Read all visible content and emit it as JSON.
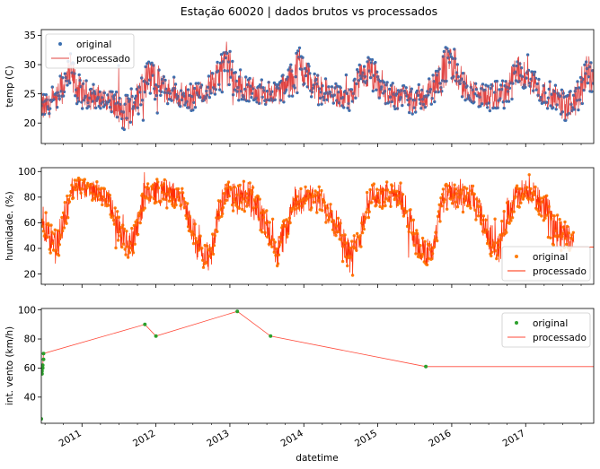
{
  "title": "Estação 60020 | dados brutos vs processados",
  "xlabel": "datetime",
  "colors": {
    "temp_original": "#3a6fb0",
    "temp_processado": "#e0403e",
    "hum_original": "#ff7f0e",
    "hum_processado": "#ff2a00",
    "vento_original": "#2ca02c",
    "vento_processado": "#ff4a3a"
  },
  "chart_data": [
    {
      "type": "line",
      "name": "temp",
      "ylabel": "temp (C)",
      "xlim": [
        2010.45,
        2017.92
      ],
      "ylim": [
        16.5,
        36
      ],
      "yticks": [
        20,
        25,
        30,
        35
      ],
      "xticks": [
        2011,
        2012,
        2013,
        2014,
        2015,
        2016,
        2017
      ],
      "xticklabels": [],
      "legend": [
        "original",
        "processado"
      ],
      "legend_position": "upper left",
      "series": [
        {
          "name": "original",
          "style": "markers"
        },
        {
          "name": "processado",
          "style": "line"
        }
      ],
      "x": [
        2010.45,
        2010.55,
        2010.65,
        2010.75,
        2010.85,
        2010.95,
        2011.05,
        2011.15,
        2011.25,
        2011.35,
        2011.45,
        2011.55,
        2011.65,
        2011.75,
        2011.85,
        2011.95,
        2012.05,
        2012.15,
        2012.25,
        2012.35,
        2012.45,
        2012.55,
        2012.65,
        2012.75,
        2012.85,
        2012.95,
        2013.05,
        2013.15,
        2013.25,
        2013.35,
        2013.45,
        2013.55,
        2013.65,
        2013.75,
        2013.85,
        2013.95,
        2014.05,
        2014.15,
        2014.25,
        2014.35,
        2014.45,
        2014.55,
        2014.65,
        2014.75,
        2014.85,
        2014.95,
        2015.05,
        2015.15,
        2015.25,
        2015.35,
        2015.45,
        2015.55,
        2015.65,
        2015.75,
        2015.85,
        2015.95,
        2016.05,
        2016.15,
        2016.25,
        2016.35,
        2016.45,
        2016.55,
        2016.65,
        2016.75,
        2016.85,
        2016.95,
        2017.05,
        2017.15,
        2017.25,
        2017.35,
        2017.45,
        2017.55,
        2017.65,
        2017.75,
        2017.85,
        2017.92
      ],
      "mean": [
        22.5,
        23.0,
        23.8,
        26.5,
        28.5,
        25.5,
        25.0,
        24.5,
        24.2,
        24.0,
        23.0,
        21.0,
        22.5,
        24.5,
        27.5,
        28.0,
        26.5,
        25.5,
        25.0,
        24.5,
        24.2,
        24.8,
        25.5,
        26.5,
        28.0,
        30.5,
        27.0,
        26.0,
        25.5,
        25.5,
        25.0,
        25.0,
        25.5,
        26.0,
        28.0,
        30.0,
        28.0,
        26.0,
        25.5,
        25.0,
        24.5,
        24.0,
        24.5,
        26.5,
        28.5,
        27.5,
        25.5,
        25.0,
        24.5,
        24.8,
        24.5,
        24.0,
        24.5,
        26.0,
        28.0,
        30.0,
        29.5,
        26.5,
        25.5,
        25.0,
        24.5,
        24.0,
        24.8,
        25.5,
        28.0,
        29.0,
        28.0,
        26.0,
        25.0,
        24.5,
        24.0,
        22.5,
        23.5,
        26.0,
        28.5,
        28.0
      ],
      "amp": [
        2.5,
        2.0,
        2.0,
        3.0,
        3.0,
        2.5,
        2.0,
        2.0,
        2.0,
        2.0,
        2.5,
        3.0,
        3.0,
        2.5,
        3.0,
        3.0,
        2.5,
        2.0,
        2.0,
        2.0,
        2.0,
        2.0,
        2.0,
        2.5,
        3.0,
        3.5,
        3.0,
        2.5,
        2.0,
        2.0,
        2.0,
        2.0,
        2.0,
        2.5,
        3.0,
        3.5,
        3.0,
        2.5,
        2.0,
        2.0,
        2.0,
        2.0,
        2.0,
        3.0,
        3.0,
        3.0,
        2.5,
        2.0,
        2.0,
        2.0,
        2.5,
        2.5,
        2.0,
        2.5,
        3.0,
        3.5,
        3.5,
        2.5,
        2.0,
        2.0,
        2.0,
        2.5,
        2.0,
        2.5,
        3.0,
        3.0,
        3.0,
        2.5,
        2.0,
        2.0,
        2.0,
        2.5,
        2.5,
        3.0,
        3.5,
        3.0
      ],
      "min": 17.8,
      "max": 35.0
    },
    {
      "type": "line",
      "name": "humidade",
      "ylabel": "humidade. (%)",
      "xlim": [
        2010.45,
        2017.92
      ],
      "ylim": [
        12,
        103
      ],
      "yticks": [
        20,
        40,
        60,
        80,
        100
      ],
      "xticks": [
        2011,
        2012,
        2013,
        2014,
        2015,
        2016,
        2017
      ],
      "xticklabels": [],
      "legend": [
        "original",
        "processado"
      ],
      "legend_position": "lower right",
      "series": [
        {
          "name": "original",
          "style": "markers"
        },
        {
          "name": "processado",
          "style": "line"
        }
      ],
      "x": [
        2010.45,
        2010.55,
        2010.65,
        2010.75,
        2010.85,
        2010.95,
        2011.05,
        2011.15,
        2011.25,
        2011.35,
        2011.45,
        2011.55,
        2011.65,
        2011.75,
        2011.85,
        2011.95,
        2012.05,
        2012.15,
        2012.25,
        2012.35,
        2012.45,
        2012.55,
        2012.65,
        2012.75,
        2012.85,
        2012.95,
        2013.05,
        2013.15,
        2013.25,
        2013.35,
        2013.45,
        2013.55,
        2013.65,
        2013.75,
        2013.85,
        2013.95,
        2014.05,
        2014.15,
        2014.25,
        2014.35,
        2014.45,
        2014.55,
        2014.65,
        2014.75,
        2014.85,
        2014.95,
        2015.05,
        2015.15,
        2015.25,
        2015.35,
        2015.45,
        2015.55,
        2015.65,
        2015.75,
        2015.85,
        2015.95,
        2016.05,
        2016.15,
        2016.25,
        2016.35,
        2016.45,
        2016.55,
        2016.65,
        2016.75,
        2016.85,
        2016.95,
        2017.05,
        2017.15,
        2017.25,
        2017.35,
        2017.45,
        2017.55,
        2017.65
      ],
      "mean": [
        62,
        52,
        42,
        60,
        85,
        88,
        86,
        85,
        83,
        78,
        62,
        45,
        42,
        60,
        82,
        85,
        84,
        83,
        82,
        78,
        62,
        45,
        38,
        32,
        72,
        82,
        80,
        78,
        80,
        76,
        62,
        48,
        40,
        52,
        72,
        80,
        78,
        78,
        76,
        70,
        60,
        45,
        32,
        48,
        75,
        82,
        80,
        80,
        82,
        75,
        58,
        42,
        35,
        40,
        72,
        82,
        80,
        78,
        80,
        70,
        56,
        45,
        40,
        68,
        78,
        82,
        82,
        80,
        72,
        60,
        52,
        50,
        48
      ],
      "amp": [
        12,
        12,
        12,
        12,
        10,
        8,
        8,
        8,
        8,
        8,
        10,
        12,
        12,
        12,
        10,
        10,
        10,
        10,
        8,
        8,
        10,
        12,
        12,
        12,
        12,
        10,
        10,
        12,
        12,
        12,
        12,
        12,
        12,
        12,
        12,
        10,
        10,
        10,
        10,
        12,
        12,
        12,
        12,
        12,
        12,
        10,
        10,
        10,
        10,
        12,
        12,
        12,
        12,
        12,
        12,
        10,
        10,
        10,
        10,
        12,
        12,
        12,
        12,
        12,
        12,
        10,
        10,
        10,
        10,
        12,
        12,
        10,
        8
      ],
      "min": 16,
      "max": 100,
      "tail_x": [
        2017.62,
        2017.92
      ],
      "tail_y": 41
    },
    {
      "type": "line",
      "name": "vento",
      "ylabel": "int. vento (km/h)",
      "xlim": [
        2010.45,
        2017.92
      ],
      "ylim": [
        22,
        101
      ],
      "yticks": [
        40,
        60,
        80,
        100
      ],
      "xticks": [
        2011,
        2012,
        2013,
        2014,
        2015,
        2016,
        2017
      ],
      "xticklabels": [
        "2011",
        "2012",
        "2013",
        "2014",
        "2015",
        "2016",
        "2017"
      ],
      "legend": [
        "original",
        "processado"
      ],
      "legend_position": "upper right",
      "series": [
        {
          "name": "original",
          "style": "markers",
          "x": [
            2010.45,
            2010.46,
            2010.46,
            2010.47,
            2010.47,
            2010.48,
            2010.48,
            2011.85,
            2012.0,
            2013.1,
            2013.55,
            2015.65
          ],
          "y": [
            25,
            56,
            58,
            60,
            62,
            66,
            70,
            90,
            82,
            99,
            82,
            61
          ]
        },
        {
          "name": "processado",
          "style": "line",
          "x": [
            2010.45,
            2010.46,
            2010.47,
            2010.48,
            2011.85,
            2012.0,
            2013.1,
            2013.55,
            2015.65,
            2017.92
          ],
          "y": [
            58,
            60,
            62,
            70,
            90,
            82,
            99,
            82,
            61,
            61
          ]
        }
      ]
    }
  ]
}
